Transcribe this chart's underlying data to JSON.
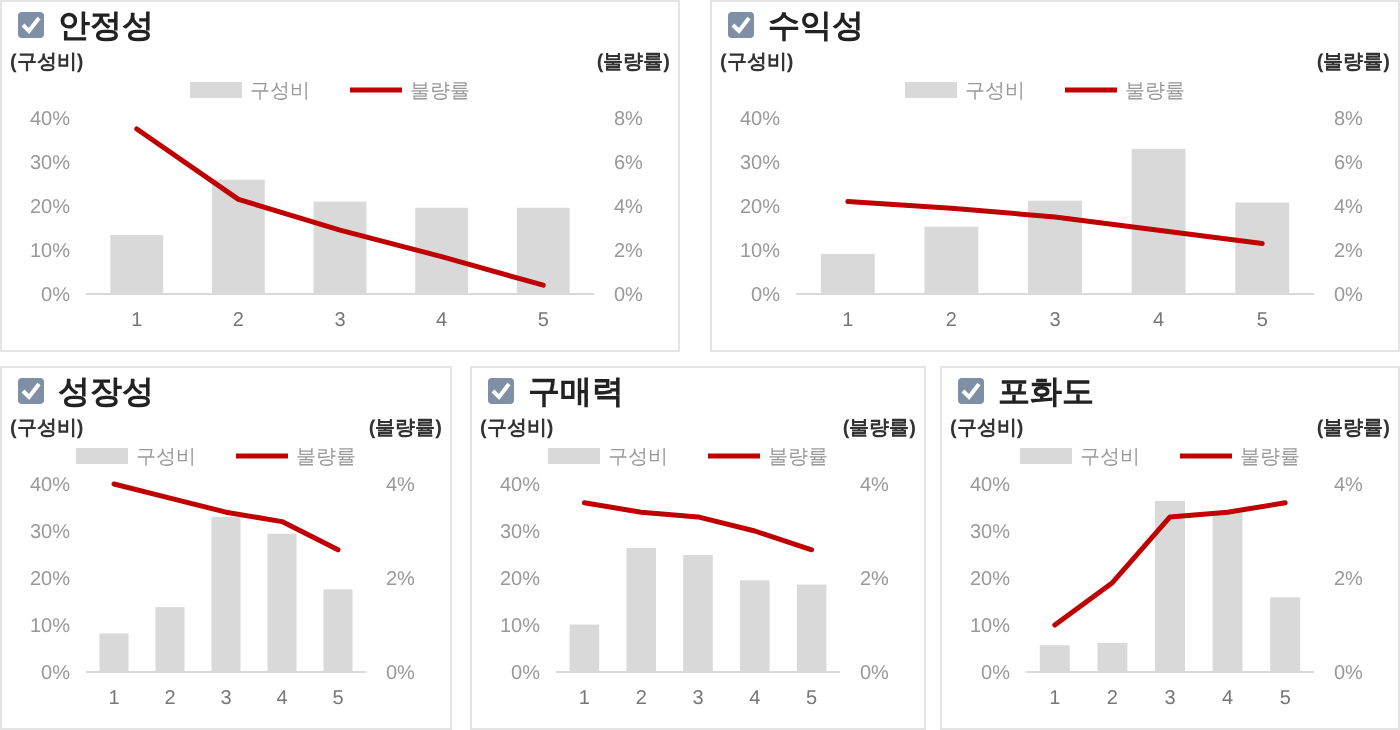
{
  "chart_data": [
    {
      "type": "bar",
      "title": "안정성",
      "ylabel": "(구성비)",
      "y2label": "(불량률)",
      "categories": [
        "1",
        "2",
        "3",
        "4",
        "5"
      ],
      "legend": "top",
      "ylim": [
        0,
        40
      ],
      "yticks": [
        {
          "value": 0,
          "label": "0%"
        },
        {
          "value": 10,
          "label": "10%"
        },
        {
          "value": 20,
          "label": "20%"
        },
        {
          "value": 30,
          "label": "30%"
        },
        {
          "value": 40,
          "label": "40%"
        }
      ],
      "y2lim": [
        0,
        8
      ],
      "y2ticks": [
        {
          "value": 0,
          "label": "0%"
        },
        {
          "value": 2,
          "label": "2%"
        },
        {
          "value": 4,
          "label": "4%"
        },
        {
          "value": 6,
          "label": "6%"
        },
        {
          "value": 8,
          "label": "8%"
        }
      ],
      "series": [
        {
          "name": "구성비",
          "color": "#d9d9d9",
          "values": [
            13.4,
            26,
            21,
            19.6,
            19.6
          ]
        },
        {
          "name": "불량률",
          "type": "line",
          "axis": "y2",
          "color": "#c00000",
          "values": [
            7.5,
            4.3,
            2.9,
            1.7,
            0.4
          ]
        }
      ]
    },
    {
      "type": "bar",
      "title": "수익성",
      "ylabel": "(구성비)",
      "y2label": "(불량률)",
      "categories": [
        "1",
        "2",
        "3",
        "4",
        "5"
      ],
      "legend": "top",
      "ylim": [
        0,
        40
      ],
      "yticks": [
        {
          "value": 0,
          "label": "0%"
        },
        {
          "value": 10,
          "label": "10%"
        },
        {
          "value": 20,
          "label": "20%"
        },
        {
          "value": 30,
          "label": "30%"
        },
        {
          "value": 40,
          "label": "40%"
        }
      ],
      "y2lim": [
        0,
        8
      ],
      "y2ticks": [
        {
          "value": 0,
          "label": "0%"
        },
        {
          "value": 2,
          "label": "2%"
        },
        {
          "value": 4,
          "label": "4%"
        },
        {
          "value": 6,
          "label": "6%"
        },
        {
          "value": 8,
          "label": "8%"
        }
      ],
      "series": [
        {
          "name": "구성비",
          "color": "#d9d9d9",
          "values": [
            9.1,
            15.3,
            21.2,
            33,
            20.8
          ]
        },
        {
          "name": "불량률",
          "type": "line",
          "axis": "y2",
          "color": "#c00000",
          "values": [
            4.2,
            3.9,
            3.5,
            2.9,
            2.3
          ]
        }
      ]
    },
    {
      "type": "bar",
      "title": "성장성",
      "ylabel": "(구성비)",
      "y2label": "(불량률)",
      "categories": [
        "1",
        "2",
        "3",
        "4",
        "5"
      ],
      "legend": "top",
      "ylim": [
        0,
        40
      ],
      "yticks": [
        {
          "value": 0,
          "label": "0%"
        },
        {
          "value": 10,
          "label": "10%"
        },
        {
          "value": 20,
          "label": "20%"
        },
        {
          "value": 30,
          "label": "30%"
        },
        {
          "value": 40,
          "label": "40%"
        }
      ],
      "y2lim": [
        0,
        4
      ],
      "y2ticks": [
        {
          "value": 0,
          "label": "0%"
        },
        {
          "value": 2,
          "label": "2%"
        },
        {
          "value": 4,
          "label": "4%"
        }
      ],
      "series": [
        {
          "name": "구성비",
          "color": "#d9d9d9",
          "values": [
            8.2,
            13.8,
            33,
            29.4,
            17.6
          ]
        },
        {
          "name": "불량률",
          "type": "line",
          "axis": "y2",
          "color": "#c00000",
          "values": [
            4.0,
            3.7,
            3.4,
            3.2,
            2.6
          ]
        }
      ]
    },
    {
      "type": "bar",
      "title": "구매력",
      "ylabel": "(구성비)",
      "y2label": "(불량률)",
      "categories": [
        "1",
        "2",
        "3",
        "4",
        "5"
      ],
      "legend": "top",
      "ylim": [
        0,
        40
      ],
      "yticks": [
        {
          "value": 0,
          "label": "0%"
        },
        {
          "value": 10,
          "label": "10%"
        },
        {
          "value": 20,
          "label": "20%"
        },
        {
          "value": 30,
          "label": "30%"
        },
        {
          "value": 40,
          "label": "40%"
        }
      ],
      "y2lim": [
        0,
        4
      ],
      "y2ticks": [
        {
          "value": 0,
          "label": "0%"
        },
        {
          "value": 2,
          "label": "2%"
        },
        {
          "value": 4,
          "label": "4%"
        }
      ],
      "series": [
        {
          "name": "구성비",
          "color": "#d9d9d9",
          "values": [
            10.1,
            26.4,
            24.9,
            19.5,
            18.6
          ]
        },
        {
          "name": "불량률",
          "type": "line",
          "axis": "y2",
          "color": "#c00000",
          "values": [
            3.6,
            3.4,
            3.3,
            3.0,
            2.6
          ]
        }
      ]
    },
    {
      "type": "bar",
      "title": "포화도",
      "ylabel": "(구성비)",
      "y2label": "(불량률)",
      "categories": [
        "1",
        "2",
        "3",
        "4",
        "5"
      ],
      "legend": "top",
      "ylim": [
        0,
        40
      ],
      "yticks": [
        {
          "value": 0,
          "label": "0%"
        },
        {
          "value": 10,
          "label": "10%"
        },
        {
          "value": 20,
          "label": "20%"
        },
        {
          "value": 30,
          "label": "30%"
        },
        {
          "value": 40,
          "label": "40%"
        }
      ],
      "y2lim": [
        0,
        4
      ],
      "y2ticks": [
        {
          "value": 0,
          "label": "0%"
        },
        {
          "value": 2,
          "label": "2%"
        },
        {
          "value": 4,
          "label": "4%"
        }
      ],
      "series": [
        {
          "name": "구성비",
          "color": "#d9d9d9",
          "values": [
            5.7,
            6.2,
            36.4,
            33.8,
            15.9
          ]
        },
        {
          "name": "불량률",
          "type": "line",
          "axis": "y2",
          "color": "#c00000",
          "values": [
            1.0,
            1.9,
            3.3,
            3.4,
            3.6
          ]
        }
      ]
    }
  ]
}
